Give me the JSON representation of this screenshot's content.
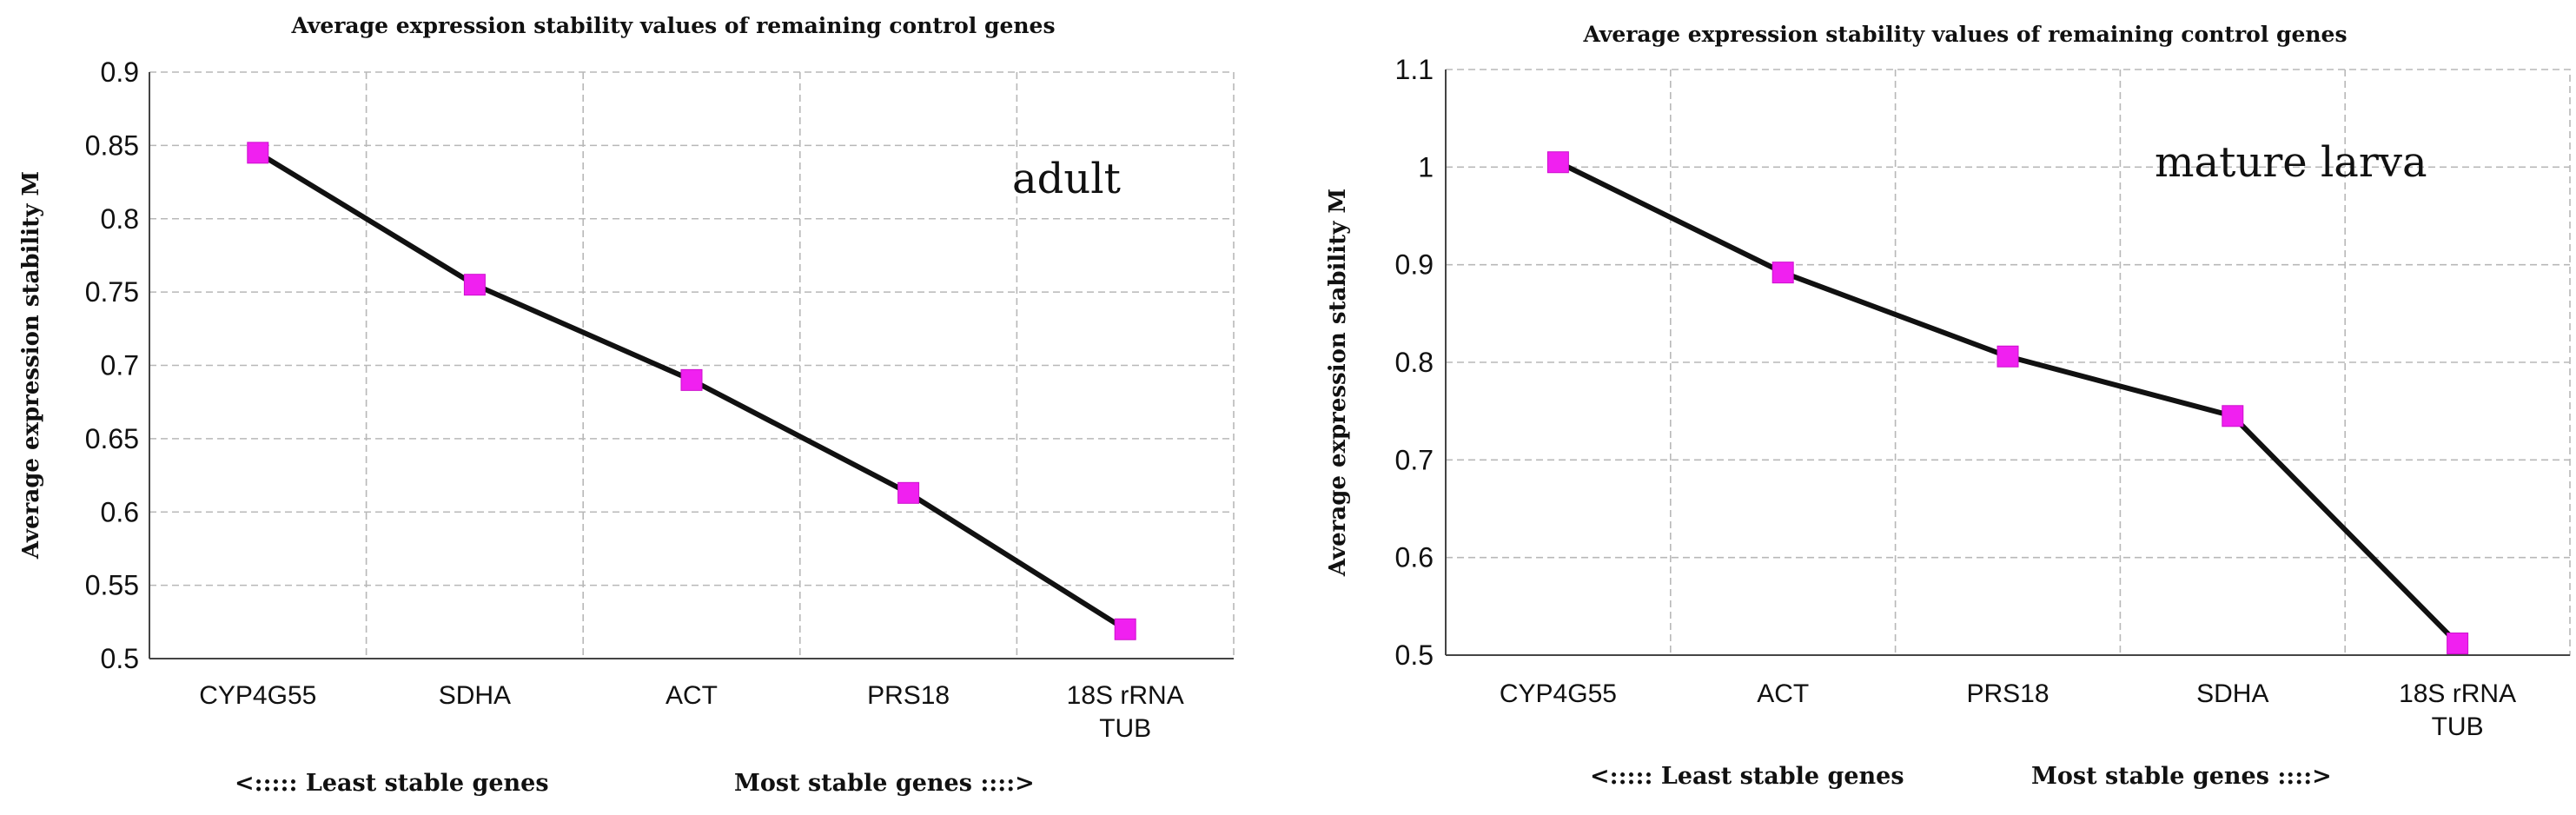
{
  "chart_data": [
    {
      "type": "line",
      "title": "Average expression stability values of remaining control genes",
      "ylabel": "Average expression stability M",
      "xlabel_left": "<:::::  Least stable genes",
      "xlabel_right": "Most stable genes ::::>",
      "annotation": "adult",
      "categories": [
        [
          "CYP4G55"
        ],
        [
          "SDHA"
        ],
        [
          "ACT"
        ],
        [
          "PRS18"
        ],
        [
          "18S rRNA",
          "TUB"
        ]
      ],
      "values": [
        0.845,
        0.755,
        0.69,
        0.613,
        0.52
      ],
      "ylim": [
        0.5,
        0.9
      ],
      "yticks": [
        "0.9",
        "0.85",
        "0.8",
        "0.75",
        "0.7",
        "0.65",
        "0.6",
        "0.55",
        "0.5"
      ],
      "grid": true,
      "series_color": "#111111",
      "marker_color": "#f020f0"
    },
    {
      "type": "line",
      "title": "Average expression stability values of remaining control genes",
      "ylabel": "Average expression stability M",
      "xlabel_left": "<:::::  Least stable genes",
      "xlabel_right": "Most stable genes ::::>",
      "annotation": "mature larva",
      "categories": [
        [
          "CYP4G55"
        ],
        [
          "ACT"
        ],
        [
          "PRS18"
        ],
        [
          "SDHA"
        ],
        [
          "18S rRNA",
          "TUB"
        ]
      ],
      "values": [
        1.005,
        0.892,
        0.806,
        0.745,
        0.512
      ],
      "ylim": [
        0.5,
        1.1
      ],
      "yticks": [
        "1.1",
        "1",
        "0.9",
        "0.8",
        "0.7",
        "0.6",
        "0.5"
      ],
      "grid": true,
      "series_color": "#111111",
      "marker_color": "#f020f0"
    }
  ]
}
